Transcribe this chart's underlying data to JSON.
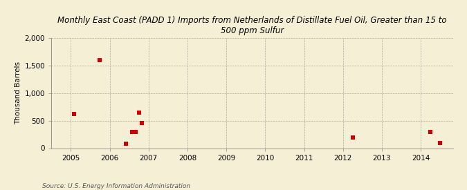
{
  "title": "Monthly East Coast (PADD 1) Imports from Netherlands of Distillate Fuel Oil, Greater than 15 to\n500 ppm Sulfur",
  "ylabel": "Thousand Barrels",
  "source": "Source: U.S. Energy Information Administration",
  "background_color": "#f5efd5",
  "plot_background_color": "#f5efd5",
  "marker_color": "#cc0000",
  "marker": "s",
  "marker_size": 4,
  "xlim": [
    2004.5,
    2014.83
  ],
  "ylim": [
    0,
    2000
  ],
  "yticks": [
    0,
    500,
    1000,
    1500,
    2000
  ],
  "ytick_labels": [
    "0",
    "500",
    "1,000",
    "1,500",
    "2,000"
  ],
  "xtick_labels": [
    "2005",
    "2006",
    "2007",
    "2008",
    "2009",
    "2010",
    "2011",
    "2012",
    "2013",
    "2014"
  ],
  "xtick_positions": [
    2005,
    2006,
    2007,
    2008,
    2009,
    2010,
    2011,
    2012,
    2013,
    2014
  ],
  "data_x": [
    2005.08,
    2005.75,
    2006.42,
    2006.58,
    2006.67,
    2006.75,
    2006.83,
    2012.25,
    2014.25,
    2014.5
  ],
  "data_y": [
    620,
    1600,
    80,
    290,
    300,
    640,
    460,
    190,
    295,
    95
  ]
}
